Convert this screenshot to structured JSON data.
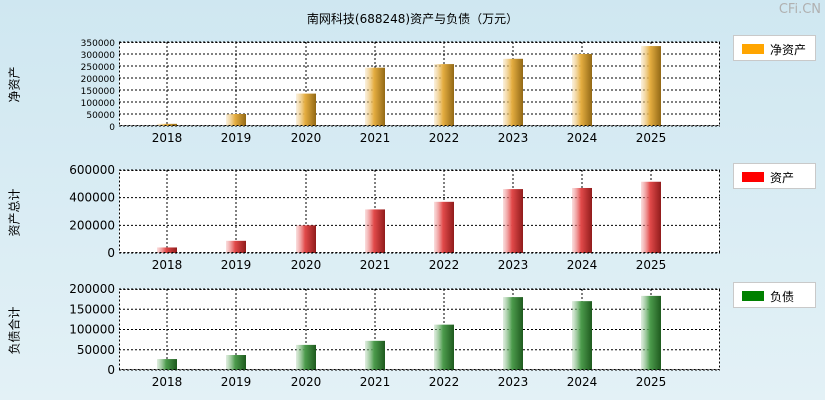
{
  "title": "南网科技(688248)资产与负债（万元）",
  "watermark": "CFi.CN",
  "chart_data": [
    {
      "type": "bar",
      "name": "net-assets",
      "ylabel": "净资产",
      "legend": "净资产",
      "color": "#e0a020",
      "legend_color": "#ffa500",
      "categories": [
        "2018",
        "2019",
        "2020",
        "2021",
        "2022",
        "2023",
        "2024",
        "2025"
      ],
      "values": [
        9000,
        50000,
        135000,
        243000,
        258000,
        280000,
        300000,
        333000
      ],
      "ylim": [
        0,
        350000
      ],
      "yticks": [
        "0",
        "50000",
        "100000",
        "150000",
        "200000",
        "250000",
        "300000",
        "350000"
      ],
      "ytick_values": [
        0,
        50000,
        100000,
        150000,
        200000,
        250000,
        300000,
        350000
      ],
      "grid": true
    },
    {
      "type": "bar",
      "name": "total-assets",
      "ylabel": "资产总计",
      "legend": "资产",
      "color": "#dd2a2a",
      "legend_color": "#ff0000",
      "categories": [
        "2018",
        "2019",
        "2020",
        "2021",
        "2022",
        "2023",
        "2024",
        "2025"
      ],
      "values": [
        40000,
        88000,
        200000,
        315000,
        370000,
        462000,
        470000,
        515000
      ],
      "ylim": [
        0,
        600000
      ],
      "yticks": [
        "0",
        "200000",
        "400000",
        "600000"
      ],
      "ytick_values": [
        0,
        200000,
        400000,
        600000
      ],
      "grid": true
    },
    {
      "type": "bar",
      "name": "liabilities",
      "ylabel": "负债合计",
      "legend": "负债",
      "color": "#2e8b2e",
      "legend_color": "#008000",
      "categories": [
        "2018",
        "2019",
        "2020",
        "2021",
        "2022",
        "2023",
        "2024",
        "2025"
      ],
      "values": [
        27000,
        37000,
        62000,
        72000,
        112000,
        180000,
        170000,
        183000
      ],
      "ylim": [
        0,
        200000
      ],
      "yticks": [
        "0",
        "50000",
        "100000",
        "150000",
        "200000"
      ],
      "ytick_values": [
        0,
        50000,
        100000,
        150000,
        200000
      ],
      "grid": true
    }
  ]
}
